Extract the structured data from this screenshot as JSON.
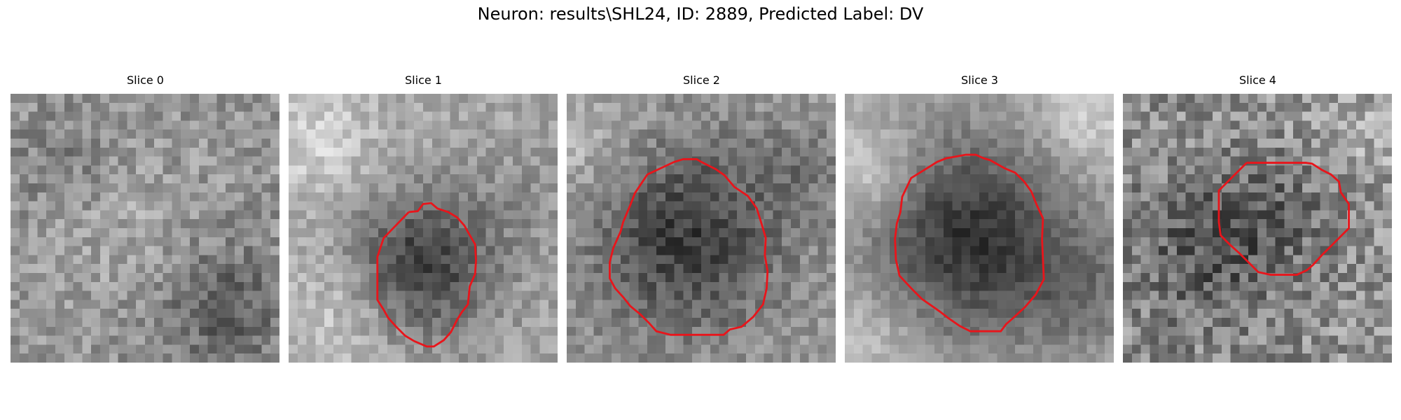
{
  "figure": {
    "title": "Neuron: results\\SHL24, ID: 2889, Predicted Label: DV"
  },
  "slices": [
    {
      "title": "Slice 0",
      "contour": null,
      "brightness": "uniform-mottled"
    },
    {
      "title": "Slice 1",
      "contour": "red-polygon",
      "brightness": "dark-center"
    },
    {
      "title": "Slice 2",
      "contour": "red-polygon",
      "brightness": "dark-center"
    },
    {
      "title": "Slice 3",
      "contour": "red-polygon",
      "brightness": "dark-round-blob"
    },
    {
      "title": "Slice 4",
      "contour": "red-polygon",
      "brightness": "noisy-dark-center"
    }
  ],
  "colors": {
    "contour": "#e8151b",
    "background": "#ffffff",
    "text": "#000000"
  }
}
